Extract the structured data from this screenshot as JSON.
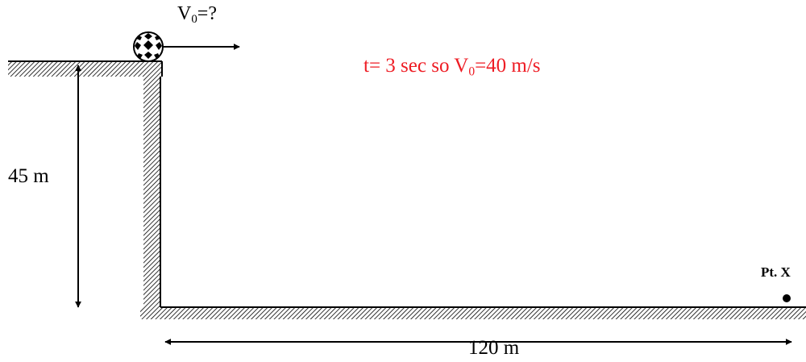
{
  "labels": {
    "v0_prefix": "V",
    "v0_sub": "0",
    "v0_suffix": "=?",
    "answer_prefix": "t= 3 sec  so V",
    "answer_sub": "0",
    "answer_suffix": "=40 m/s",
    "height": "45 m",
    "distance": "120 m",
    "point": "Pt. X"
  },
  "colors": {
    "answer": "#ee1c24",
    "lines": "#000000"
  },
  "icons": {
    "ball": "soccer-ball-icon"
  }
}
